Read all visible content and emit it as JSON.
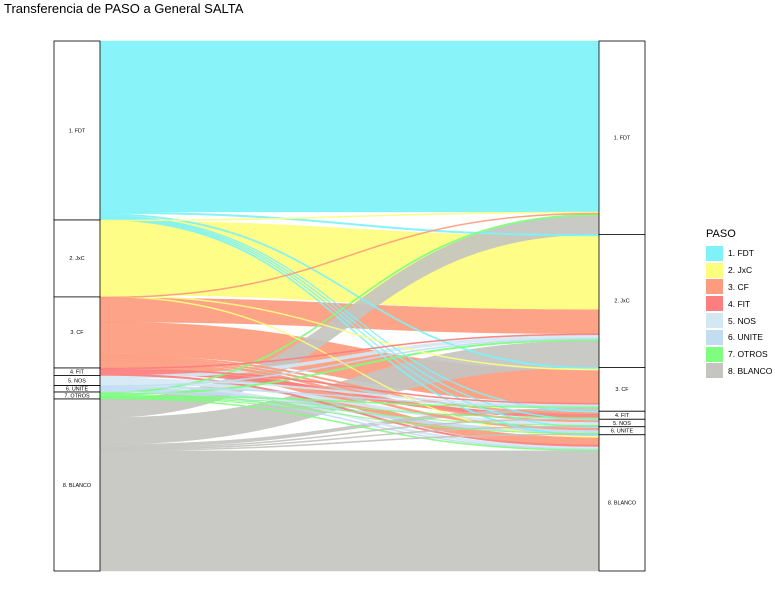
{
  "chart_data": {
    "type": "alluvial",
    "title": "Transferencia de PASO a General SALTA",
    "legend_title": "PASO",
    "legend_position": "right",
    "axes": [
      "PASO",
      "General"
    ],
    "left_categories": [
      "1. FDT",
      "2. JxC",
      "3. CF",
      "4. FIT",
      "5. NOS",
      "6. UNITE",
      "7. OTROS",
      "8. BLANCO"
    ],
    "right_categories": [
      "1. FDT",
      "2. JxC",
      "3. CF",
      "4. FIT",
      "5. NOS",
      "6. UNITE",
      "8. BLANCO"
    ],
    "colors": {
      "1. FDT": "#7ef2f8",
      "2. JxC": "#fdfd7e",
      "3. CF": "#fd9b7e",
      "4. FIT": "#fd7e7e",
      "5. NOS": "#d4e8f4",
      "6. UNITE": "#c2dcf2",
      "7. OTROS": "#7efd7e",
      "8. BLANCO": "#c4c4c0"
    },
    "flows": [
      {
        "from": "1. FDT",
        "to": "1. FDT",
        "value": 32.0
      },
      {
        "from": "1. FDT",
        "to": "2. JxC",
        "value": 0.3
      },
      {
        "from": "1. FDT",
        "to": "3. CF",
        "value": 0.3
      },
      {
        "from": "1. FDT",
        "to": "4. FIT",
        "value": 0.2
      },
      {
        "from": "1. FDT",
        "to": "5. NOS",
        "value": 0.2
      },
      {
        "from": "1. FDT",
        "to": "6. UNITE",
        "value": 0.2
      },
      {
        "from": "1. FDT",
        "to": "8. BLANCO",
        "value": 0.3
      },
      {
        "from": "2. JxC",
        "to": "1. FDT",
        "value": 0.2
      },
      {
        "from": "2. JxC",
        "to": "2. JxC",
        "value": 13.8
      },
      {
        "from": "2. JxC",
        "to": "3. CF",
        "value": 0.2
      },
      {
        "from": "2. JxC",
        "to": "8. BLANCO",
        "value": 0.2
      },
      {
        "from": "3. CF",
        "to": "1. FDT",
        "value": 0.2
      },
      {
        "from": "3. CF",
        "to": "2. JxC",
        "value": 4.5
      },
      {
        "from": "3. CF",
        "to": "3. CF",
        "value": 6.2
      },
      {
        "from": "3. CF",
        "to": "4. FIT",
        "value": 0.3
      },
      {
        "from": "3. CF",
        "to": "5. NOS",
        "value": 0.3
      },
      {
        "from": "3. CF",
        "to": "6. UNITE",
        "value": 0.4
      },
      {
        "from": "3. CF",
        "to": "8. BLANCO",
        "value": 1.4
      },
      {
        "from": "4. FIT",
        "to": "2. JxC",
        "value": 0.2
      },
      {
        "from": "4. FIT",
        "to": "3. CF",
        "value": 0.2
      },
      {
        "from": "4. FIT",
        "to": "4. FIT",
        "value": 0.7
      },
      {
        "from": "4. FIT",
        "to": "8. BLANCO",
        "value": 0.3
      },
      {
        "from": "5. NOS",
        "to": "2. JxC",
        "value": 0.6
      },
      {
        "from": "5. NOS",
        "to": "3. CF",
        "value": 0.3
      },
      {
        "from": "5. NOS",
        "to": "5. NOS",
        "value": 0.6
      },
      {
        "from": "5. NOS",
        "to": "8. BLANCO",
        "value": 0.4
      },
      {
        "from": "6. UNITE",
        "to": "2. JxC",
        "value": 0.2
      },
      {
        "from": "6. UNITE",
        "to": "3. CF",
        "value": 0.2
      },
      {
        "from": "6. UNITE",
        "to": "6. UNITE",
        "value": 0.6
      },
      {
        "from": "6. UNITE",
        "to": "8. BLANCO",
        "value": 0.2
      },
      {
        "from": "7. OTROS",
        "to": "1. FDT",
        "value": 0.3
      },
      {
        "from": "7. OTROS",
        "to": "2. JxC",
        "value": 0.3
      },
      {
        "from": "7. OTROS",
        "to": "3. CF",
        "value": 0.2
      },
      {
        "from": "7. OTROS",
        "to": "4. FIT",
        "value": 0.1
      },
      {
        "from": "7. OTROS",
        "to": "5. NOS",
        "value": 0.1
      },
      {
        "from": "7. OTROS",
        "to": "6. UNITE",
        "value": 0.1
      },
      {
        "from": "7. OTROS",
        "to": "8. BLANCO",
        "value": 0.2
      },
      {
        "from": "8. BLANCO",
        "to": "1. FDT",
        "value": 3.5
      },
      {
        "from": "8. BLANCO",
        "to": "2. JxC",
        "value": 5.0
      },
      {
        "from": "8. BLANCO",
        "to": "3. CF",
        "value": 0.6
      },
      {
        "from": "8. BLANCO",
        "to": "4. FIT",
        "value": 0.2
      },
      {
        "from": "8. BLANCO",
        "to": "5. NOS",
        "value": 0.2
      },
      {
        "from": "8. BLANCO",
        "to": "6. UNITE",
        "value": 0.2
      },
      {
        "from": "8. BLANCO",
        "to": "8. BLANCO",
        "value": 22.5
      }
    ]
  }
}
